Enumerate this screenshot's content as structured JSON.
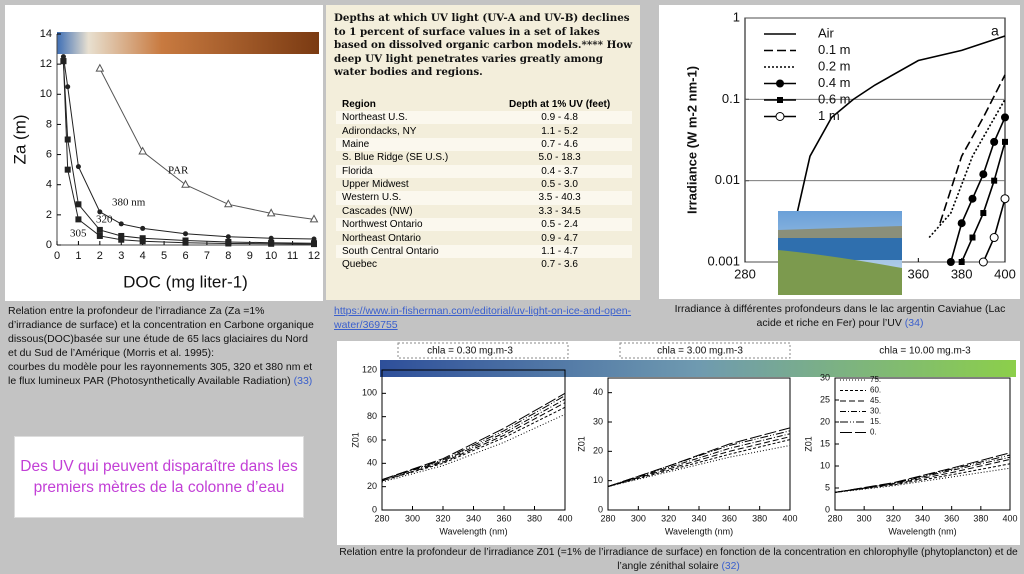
{
  "captions": {
    "left": "Relation entre la profondeur de l’irradiance Za (Za =1% d’irradiance de surface) et la concentration en Carbone organique dissous(DOC)basée sur une étude de 65 lacs glaciaires du Nord et du Sud de l’Amérique (Morris et al. 1995):",
    "left_2": "courbes du modèle pour les rayonnements 305, 320 et 380 nm et le flux lumineux PAR (Photosynthetically Available Radiation)",
    "left_ref": "(33)",
    "highlight": "Des UV qui peuvent disparaître dans les premiers mètres de la colonne d’eau",
    "link": "https://www.in-fisherman.com/editorial/uv-light-on-ice-and-open-water/369755",
    "right": "Irradiance  à différentes profondeurs dans le lac argentin Caviahue (Lac acide et riche en Fer) pour l’UV",
    "right_ref": "(34)",
    "bottom": "Relation entre la profondeur de l’irradiance Z01 (=1% de l’irradiance de surface) en fonction  de la concentration en chlorophylle (phytoplancton) et de l’angle zénithal solaire",
    "bottom_ref": "(32)"
  },
  "table": {
    "title": "Depths at which UV light (UV-A and UV-B) declines to 1 percent of surface values in a set of lakes based on dissolved organic carbon models.**** How deep UV light penetrates varies greatly among water bodies and regions.",
    "header": [
      "Region",
      "Depth at 1% UV (feet)"
    ],
    "rows": [
      [
        "Northeast U.S.",
        "0.9 - 4.8"
      ],
      [
        "Adirondacks, NY",
        "1.1 - 5.2"
      ],
      [
        "Maine",
        "0.7 - 4.6"
      ],
      [
        "S. Blue Ridge (SE U.S.)",
        "5.0 - 18.3"
      ],
      [
        "Florida",
        "0.4 - 3.7"
      ],
      [
        "Upper Midwest",
        "0.5 - 3.0"
      ],
      [
        "Western U.S.",
        "3.5 - 40.3"
      ],
      [
        "Cascades (NW)",
        "3.3 - 34.5"
      ],
      [
        "Northwest Ontario",
        "0.5 - 2.4"
      ],
      [
        "Northeast Ontario",
        "0.9 - 4.7"
      ],
      [
        "South Central Ontario",
        "1.1 - 4.7"
      ],
      [
        "Quebec",
        "0.7 - 3.6"
      ]
    ]
  },
  "chart_data": [
    {
      "type": "line",
      "xlabel": "DOC (mg liter-1)",
      "ylabel": "Za (m)",
      "xlim": [
        0,
        12
      ],
      "xticks": [
        0,
        1,
        2,
        3,
        4,
        5,
        6,
        7,
        8,
        9,
        10,
        11,
        12
      ],
      "ylim": [
        0,
        14
      ],
      "yticks": [
        0,
        2,
        4,
        6,
        8,
        10,
        12,
        14
      ],
      "series": [
        {
          "name": "305",
          "color": "#222222",
          "marker": "square",
          "x": [
            0.3,
            0.5,
            1,
            2,
            3,
            4,
            6,
            8,
            10,
            12
          ],
          "values": [
            12.2,
            5,
            1.7,
            0.6,
            0.35,
            0.25,
            0.15,
            0.1,
            0.08,
            0.06
          ]
        },
        {
          "name": "320",
          "color": "#222222",
          "marker": "square",
          "x": [
            0.3,
            0.5,
            1,
            2,
            3,
            4,
            6,
            8,
            10,
            12
          ],
          "values": [
            12.2,
            7,
            2.7,
            1,
            0.6,
            0.45,
            0.3,
            0.2,
            0.15,
            0.12
          ]
        },
        {
          "name": "380 nm",
          "color": "#222222",
          "marker": "circle",
          "x": [
            0.3,
            0.5,
            1,
            2,
            3,
            4,
            6,
            8,
            10,
            12
          ],
          "values": [
            12.5,
            10.5,
            5.2,
            2.2,
            1.4,
            1.1,
            0.75,
            0.55,
            0.45,
            0.4
          ]
        },
        {
          "name": "PAR",
          "color": "#555555",
          "marker": "triangle",
          "x": [
            2,
            4,
            6,
            8,
            10,
            12
          ],
          "values": [
            11.7,
            6.2,
            4,
            2.7,
            2.1,
            1.7
          ]
        }
      ]
    },
    {
      "type": "line",
      "annotation": "a",
      "xlabel": "",
      "ylabel": "Irradiance (W m-2 nm-1)",
      "log_y": true,
      "grid": true,
      "xlim": [
        280,
        400
      ],
      "xticks": [
        280,
        360,
        380,
        400
      ],
      "ylim": [
        0.001,
        1
      ],
      "yticks": [
        0.001,
        0.01,
        0.1,
        1
      ],
      "series": [
        {
          "name": "Air",
          "color": "#000000",
          "marker": "none",
          "x": [
            303,
            310,
            320,
            330,
            340,
            360,
            380,
            400
          ],
          "values": [
            0.003,
            0.02,
            0.06,
            0.1,
            0.15,
            0.3,
            0.4,
            0.6
          ]
        },
        {
          "name": "0.1 m",
          "color": "#000000",
          "marker": "none",
          "x": [
            370,
            380,
            390,
            400
          ],
          "values": [
            0.003,
            0.02,
            0.06,
            0.2
          ]
        },
        {
          "name": "0.2 m",
          "color": "#000000",
          "marker": "none",
          "x": [
            365,
            375,
            385,
            400
          ],
          "values": [
            0.002,
            0.004,
            0.02,
            0.1
          ]
        },
        {
          "name": "0.4 m",
          "color": "#000000",
          "marker": "circle",
          "x": [
            375,
            380,
            385,
            390,
            395,
            400
          ],
          "values": [
            0.001,
            0.003,
            0.006,
            0.012,
            0.03,
            0.06
          ]
        },
        {
          "name": "0.6 m",
          "color": "#000000",
          "marker": "square",
          "x": [
            380,
            385,
            390,
            395,
            400
          ],
          "values": [
            0.001,
            0.002,
            0.004,
            0.01,
            0.03
          ]
        },
        {
          "name": "1 m",
          "color": "#000000",
          "marker": "open-circle",
          "x": [
            390,
            395,
            400
          ],
          "values": [
            0.001,
            0.002,
            0.006
          ]
        }
      ]
    },
    {
      "type": "line",
      "header": "chla =  0.30 mg.m-3",
      "xlabel": "Wavelength (nm)",
      "ylabel": "Z01",
      "x": [
        280,
        320,
        360,
        400
      ],
      "xlim": [
        280,
        400
      ],
      "xticks": [
        280,
        300,
        320,
        340,
        360,
        380,
        400
      ],
      "ylim": [
        0,
        120
      ],
      "yticks": [
        0,
        20,
        40,
        60,
        80,
        100,
        120
      ],
      "series": [
        {
          "color": "#000000",
          "values": [
            24,
            38,
            58,
            82
          ]
        },
        {
          "color": "#000000",
          "values": [
            25,
            40,
            62,
            88
          ]
        },
        {
          "color": "#000000",
          "values": [
            25,
            41,
            64,
            92
          ]
        },
        {
          "color": "#000000",
          "values": [
            26,
            42,
            66,
            95
          ]
        },
        {
          "color": "#000000",
          "values": [
            26,
            43,
            68,
            98
          ]
        },
        {
          "color": "#000000",
          "values": [
            26,
            44,
            70,
            100
          ]
        }
      ]
    },
    {
      "type": "line",
      "header": "chla =  3.00 mg.m-3",
      "xlabel": "Wavelength (nm)",
      "ylabel": "Z01",
      "x": [
        280,
        320,
        360,
        400
      ],
      "xlim": [
        280,
        400
      ],
      "xticks": [
        280,
        300,
        320,
        340,
        360,
        380,
        400
      ],
      "ylim": [
        0,
        45
      ],
      "yticks": [
        0,
        10,
        20,
        30,
        40
      ],
      "series": [
        {
          "color": "#000000",
          "values": [
            8,
            13,
            18,
            22
          ]
        },
        {
          "color": "#000000",
          "values": [
            8,
            13.5,
            19,
            24
          ]
        },
        {
          "color": "#000000",
          "values": [
            8,
            14,
            20,
            25
          ]
        },
        {
          "color": "#000000",
          "values": [
            8,
            14.5,
            21,
            26
          ]
        },
        {
          "color": "#000000",
          "values": [
            8,
            15,
            22,
            27
          ]
        },
        {
          "color": "#000000",
          "values": [
            8,
            15,
            22.5,
            28
          ]
        }
      ]
    },
    {
      "type": "line",
      "header": "chla = 10.00 mg.m-3",
      "xlabel": "Wavelength (nm)",
      "ylabel": "Z01",
      "x": [
        280,
        320,
        360,
        400
      ],
      "xlim": [
        280,
        400
      ],
      "xticks": [
        280,
        300,
        320,
        340,
        360,
        380,
        400
      ],
      "ylim": [
        0,
        30
      ],
      "yticks": [
        0,
        5,
        10,
        15,
        20,
        25,
        30
      ],
      "series": [
        {
          "name": "75.",
          "color": "#000000",
          "values": [
            4,
            5.5,
            7.5,
            9.5
          ]
        },
        {
          "name": "60.",
          "color": "#000000",
          "values": [
            4,
            5.7,
            8,
            10.5
          ]
        },
        {
          "name": "45.",
          "color": "#000000",
          "values": [
            4,
            5.9,
            8.5,
            11.5
          ]
        },
        {
          "name": "30.",
          "color": "#000000",
          "values": [
            4,
            6,
            9,
            12
          ]
        },
        {
          "name": "15.",
          "color": "#000000",
          "values": [
            4,
            6.1,
            9.3,
            12.5
          ]
        },
        {
          "name": "0.",
          "color": "#000000",
          "values": [
            4,
            6.2,
            9.5,
            13
          ]
        }
      ]
    }
  ]
}
